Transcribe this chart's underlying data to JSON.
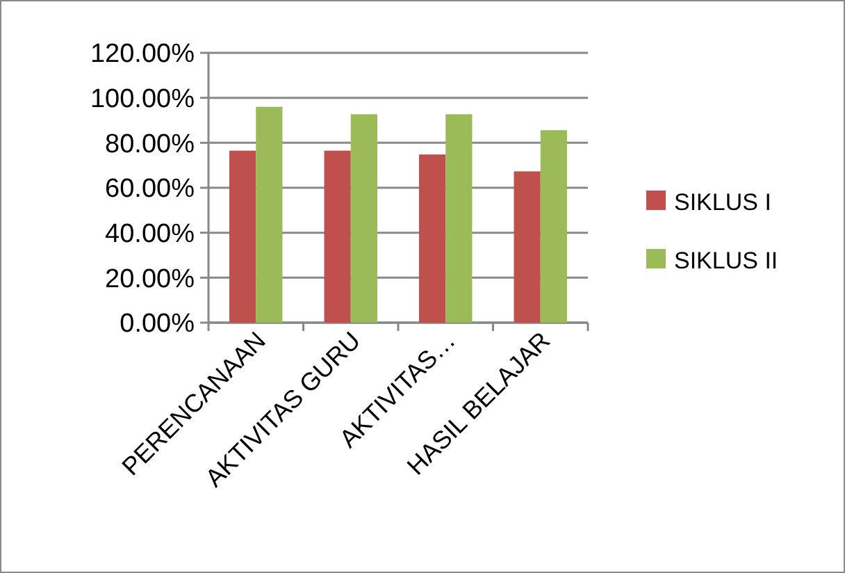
{
  "chart_data": {
    "type": "bar",
    "categories": [
      "PERENCANAAN",
      "AKTIVITAS GURU",
      "AKTIVITAS…",
      "HASIL BELAJAR"
    ],
    "series": [
      {
        "name": "SIKLUS I",
        "color": "#c0504d",
        "values": [
          76.5,
          76.5,
          74.8,
          67.3
        ]
      },
      {
        "name": "SIKLUS II",
        "color": "#9bbb59",
        "values": [
          96,
          92.7,
          92.7,
          85.6
        ]
      }
    ],
    "ylim": [
      0,
      120
    ],
    "yticks": [
      {
        "value": 0,
        "label": "0.00%"
      },
      {
        "value": 20,
        "label": "20.00%"
      },
      {
        "value": 40,
        "label": "40.00%"
      },
      {
        "value": 60,
        "label": "60.00%"
      },
      {
        "value": 80,
        "label": "80.00%"
      },
      {
        "value": 100,
        "label": "100.00%"
      },
      {
        "value": 120,
        "label": "120.00%"
      }
    ],
    "grid": "y",
    "legend": "right"
  }
}
